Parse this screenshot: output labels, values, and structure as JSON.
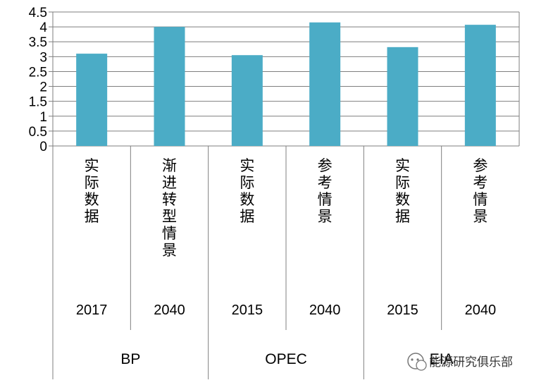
{
  "chart_data": {
    "type": "bar",
    "categories": [
      "实际数据",
      "渐进转型情景",
      "实际数据",
      "参考情景",
      "实际数据",
      "参考情景"
    ],
    "years": [
      "2017",
      "2040",
      "2015",
      "2040",
      "2015",
      "2040"
    ],
    "groups": [
      {
        "label": "BP",
        "span": 2
      },
      {
        "label": "OPEC",
        "span": 2
      },
      {
        "label": "EIA",
        "span": 2
      }
    ],
    "values": [
      3.1,
      4.0,
      3.05,
      4.15,
      3.32,
      4.07
    ],
    "yticks": [
      "0",
      "0.5",
      "1",
      "1.5",
      "2",
      "2.5",
      "3",
      "3.5",
      "4",
      "4.5"
    ],
    "ylim": [
      0,
      4.5
    ],
    "grid": true,
    "bar_color": "#4BACC6"
  },
  "watermark": {
    "text": "能源研究俱乐部",
    "icon": "wechat-icon"
  }
}
